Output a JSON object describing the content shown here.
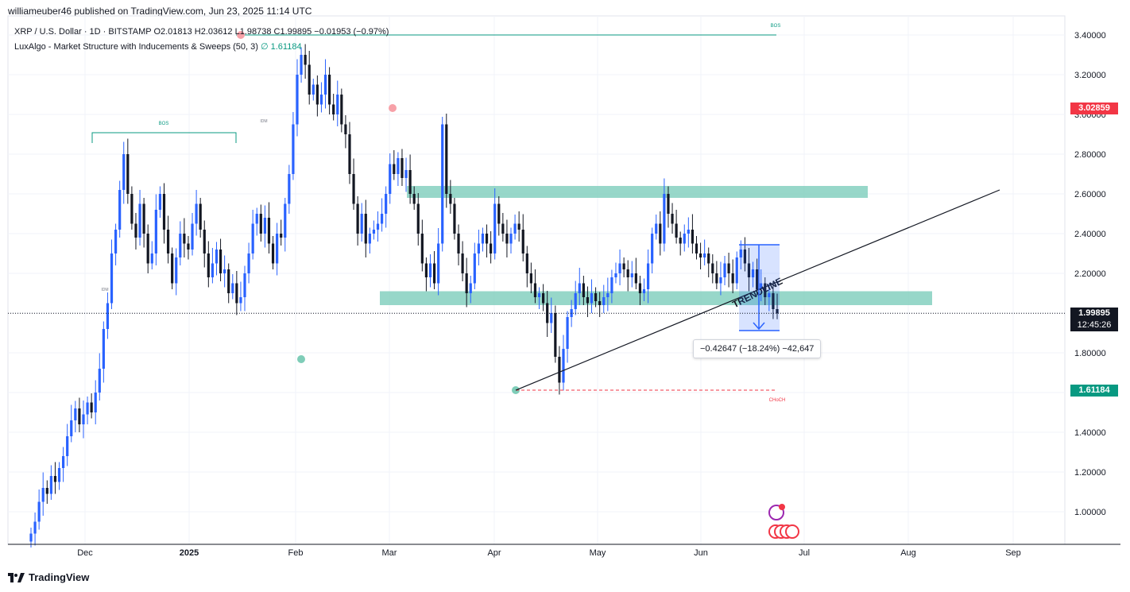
{
  "header": {
    "published_text": "williameuber46 published on TradingView.com, Jun 23, 2025 11:14 UTC"
  },
  "legend": {
    "symbol": "XRP / U.S. Dollar · 1D · BITSTAMP",
    "ohlc": "O2.01813  H2.03612  L1.98738  C1.99895  −0.01953 (−0.97%)",
    "indicator_name": "LuxAlgo - Market Structure with Inducements & Sweeps (50, 3)",
    "indicator_value": "∅  1.61184"
  },
  "annotations": {
    "bos_top": "BOS",
    "bos_left": "BOS",
    "idm_1": "IDM",
    "idm_2": "IDM",
    "choch": "CHoCH",
    "trendline": "TRENDLINE",
    "measure": "−0.42647 (−18.24%) −42,647"
  },
  "price_tags": {
    "red": "3.02859",
    "last_price": "1.99895",
    "countdown": "12:45:26",
    "green": "1.61184"
  },
  "footer": {
    "brand": "TradingView"
  },
  "colors": {
    "up": "#2962ff",
    "down": "#131722",
    "zone": "#7dcdbb",
    "red_tag": "#f23645",
    "green_tag": "#089981",
    "last_tag": "#131722"
  },
  "chart_data": {
    "type": "candlestick",
    "y_axis": {
      "range": [
        0.85,
        3.5
      ],
      "ticks": [
        "3.40000",
        "3.20000",
        "3.00000",
        "2.80000",
        "2.60000",
        "2.40000",
        "2.20000",
        "2.00000",
        "1.80000",
        "1.60000",
        "1.40000",
        "1.20000",
        "1.00000"
      ]
    },
    "x_axis": {
      "ticks": [
        "Dec",
        "2025",
        "Feb",
        "Mar",
        "Apr",
        "May",
        "Jun",
        "Jul",
        "Aug",
        "Sep"
      ]
    },
    "zones": [
      {
        "from": 2.58,
        "to": 2.64
      },
      {
        "from": 2.04,
        "to": 2.11
      }
    ],
    "trendline": {
      "from_price": 1.61184,
      "to_price": 2.62
    },
    "close_series": [
      0.89,
      0.95,
      1.05,
      1.12,
      1.09,
      1.18,
      1.15,
      1.22,
      1.28,
      1.38,
      1.46,
      1.52,
      1.44,
      1.49,
      1.55,
      1.5,
      1.6,
      1.72,
      1.92,
      2.05,
      2.3,
      2.42,
      2.62,
      2.8,
      2.6,
      2.45,
      2.38,
      2.55,
      2.4,
      2.25,
      2.3,
      2.52,
      2.6,
      2.42,
      2.3,
      2.15,
      2.28,
      2.4,
      2.35,
      2.32,
      2.45,
      2.55,
      2.42,
      2.3,
      2.18,
      2.25,
      2.32,
      2.2,
      2.22,
      2.1,
      2.15,
      2.05,
      2.08,
      2.2,
      2.3,
      2.45,
      2.5,
      2.4,
      2.48,
      2.35,
      2.25,
      2.4,
      2.38,
      2.55,
      2.7,
      2.95,
      3.2,
      3.3,
      3.25,
      3.1,
      3.15,
      3.05,
      3.1,
      3.2,
      3.05,
      3.0,
      3.1,
      2.95,
      2.9,
      2.7,
      2.55,
      2.4,
      2.5,
      2.35,
      2.4,
      2.42,
      2.45,
      2.5,
      2.6,
      2.75,
      2.7,
      2.78,
      2.68,
      2.72,
      2.6,
      2.55,
      2.4,
      2.25,
      2.18,
      2.25,
      2.15,
      2.35,
      2.95,
      2.6,
      2.55,
      2.4,
      2.3,
      2.2,
      2.1,
      2.15,
      2.3,
      2.35,
      2.4,
      2.35,
      2.3,
      2.55,
      2.45,
      2.4,
      2.35,
      2.4,
      2.45,
      2.42,
      2.3,
      2.2,
      2.15,
      2.08,
      2.1,
      2.05,
      1.95,
      2.0,
      1.78,
      1.65,
      1.82,
      1.98,
      2.02,
      2.1,
      2.15,
      2.08,
      2.05,
      2.1,
      2.06,
      2.04,
      2.08,
      2.1,
      2.18,
      2.2,
      2.25,
      2.22,
      2.18,
      2.2,
      2.15,
      2.1,
      2.12,
      2.25,
      2.4,
      2.45,
      2.35,
      2.6,
      2.5,
      2.45,
      2.38,
      2.35,
      2.4,
      2.42,
      2.35,
      2.3,
      2.28,
      2.3,
      2.25,
      2.2,
      2.15,
      2.18,
      2.25,
      2.2,
      2.15,
      2.28,
      2.32,
      2.25,
      2.18,
      2.22,
      2.12,
      2.15,
      2.08,
      2.1,
      2.02,
      1.99895
    ]
  }
}
